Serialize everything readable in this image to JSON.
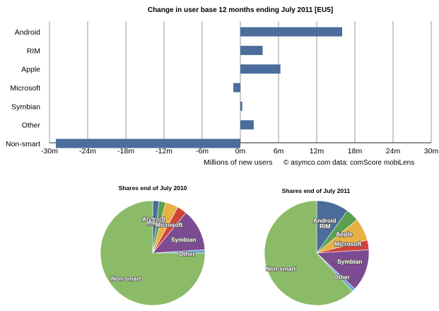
{
  "colors": {
    "bar": "#4a6d9c",
    "grid": "#9a9a9a",
    "axis": "#222222",
    "android": "#4a6d9c",
    "rim": "#5aa04e",
    "apple": "#e8b143",
    "microsoft": "#d0443b",
    "symbian": "#7c4b92",
    "other": "#6aa5cf",
    "nonsmart": "#8cbb68"
  },
  "chart_data": [
    {
      "type": "bar",
      "orientation": "horizontal",
      "title": "Change in user base 12 months ending July 2011 [EU5]",
      "xlabel": "Millions of new users",
      "source_note": "© asymco.com data: comScore mobiLens",
      "categories": [
        "Android",
        "RIM",
        "Apple",
        "Microsoft",
        "Symbian",
        "Other",
        "Non-smart"
      ],
      "values": [
        16,
        3.5,
        6.3,
        -1.1,
        0.3,
        2.1,
        -29
      ],
      "xlim": [
        -30,
        30
      ],
      "xticks": [
        -30,
        -24,
        -18,
        -12,
        -6,
        0,
        6,
        12,
        18,
        24,
        30
      ],
      "xtick_labels": [
        "-30m",
        "-24m",
        "-18m",
        "-12m",
        "-6m",
        "0m",
        "6m",
        "12m",
        "18m",
        "24m",
        "30m"
      ],
      "grid": true
    },
    {
      "type": "pie",
      "title": "Shares end of July 2010",
      "slices": [
        {
          "label": "Android",
          "value": 2,
          "color": "#4a6d9c"
        },
        {
          "label": "RIM",
          "value": 2,
          "color": "#5aa04e"
        },
        {
          "label": "Apple",
          "value": 4,
          "color": "#e8b143"
        },
        {
          "label": "Microsoft",
          "value": 3,
          "color": "#d0443b"
        },
        {
          "label": "Symbian",
          "value": 13,
          "color": "#7c4b92"
        },
        {
          "label": "Other",
          "value": 1,
          "color": "#6aa5cf"
        },
        {
          "label": "Non-smart",
          "value": 75,
          "color": "#8cbb68"
        }
      ]
    },
    {
      "type": "pie",
      "title": "Shares end of July 2011",
      "slices": [
        {
          "label": "Android",
          "value": 10,
          "color": "#4a6d9c"
        },
        {
          "label": "RIM",
          "value": 4,
          "color": "#5aa04e"
        },
        {
          "label": "Apple",
          "value": 7,
          "color": "#e8b143"
        },
        {
          "label": "Microsoft",
          "value": 3,
          "color": "#d0443b"
        },
        {
          "label": "Symbian",
          "value": 13,
          "color": "#7c4b92"
        },
        {
          "label": "Other",
          "value": 1,
          "color": "#6aa5cf"
        },
        {
          "label": "Non-smart",
          "value": 62,
          "color": "#8cbb68"
        }
      ]
    }
  ]
}
